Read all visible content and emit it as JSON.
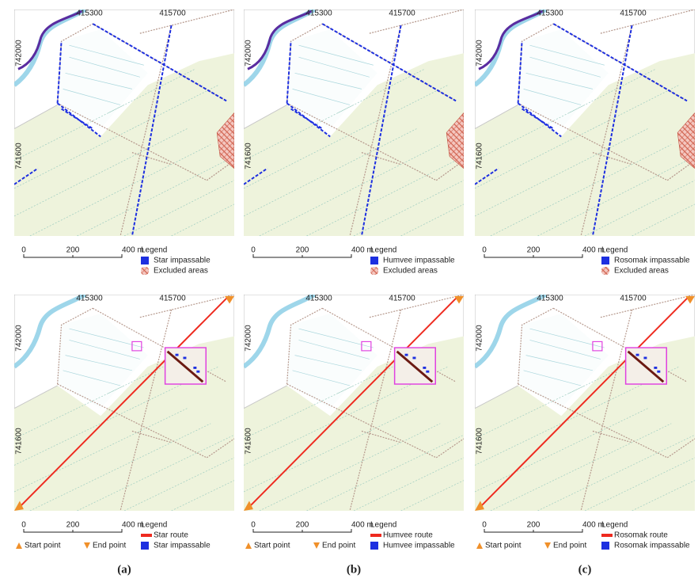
{
  "maps": {
    "top": [
      {
        "x_ticks": [
          "415300",
          "415700"
        ],
        "y_ticks": [
          "742000",
          "741600"
        ],
        "scale": [
          "0",
          "200",
          "400 m"
        ],
        "legend_title": "Legend",
        "legend": [
          "Star impassable",
          "Excluded areas"
        ]
      },
      {
        "x_ticks": [
          "415300",
          "415700"
        ],
        "y_ticks": [
          "742000",
          "741600"
        ],
        "scale": [
          "0",
          "200",
          "400 m"
        ],
        "legend_title": "Legend",
        "legend": [
          "Humvee impassable",
          "Excluded areas"
        ]
      },
      {
        "x_ticks": [
          "415300",
          "415700"
        ],
        "y_ticks": [
          "742000",
          "741600"
        ],
        "scale": [
          "0",
          "200",
          "400 m"
        ],
        "legend_title": "Legend",
        "legend": [
          "Rosomak impassable",
          "Excluded areas"
        ]
      }
    ],
    "bottom": [
      {
        "x_ticks": [
          "415300",
          "415700"
        ],
        "y_ticks": [
          "742000",
          "741600"
        ],
        "scale": [
          "0",
          "200",
          "400 m"
        ],
        "legend_title": "Legend",
        "legend": [
          "Star route",
          "Star impassable"
        ],
        "points": [
          "Start point",
          "End point"
        ]
      },
      {
        "x_ticks": [
          "415300",
          "415700"
        ],
        "y_ticks": [
          "742000",
          "741600"
        ],
        "scale": [
          "0",
          "200",
          "400 m"
        ],
        "legend_title": "Legend",
        "legend": [
          "Humvee route",
          "Humvee impassable"
        ],
        "points": [
          "Start point",
          "End point"
        ]
      },
      {
        "x_ticks": [
          "415300",
          "415700"
        ],
        "y_ticks": [
          "742000",
          "741600"
        ],
        "scale": [
          "0",
          "200",
          "400 m"
        ],
        "legend_title": "Legend",
        "legend": [
          "Rosomak route",
          "Rosomak impassable"
        ],
        "points": [
          "Start point",
          "End point"
        ]
      }
    ]
  },
  "captions": [
    "(a)",
    "(b)",
    "(c)"
  ]
}
